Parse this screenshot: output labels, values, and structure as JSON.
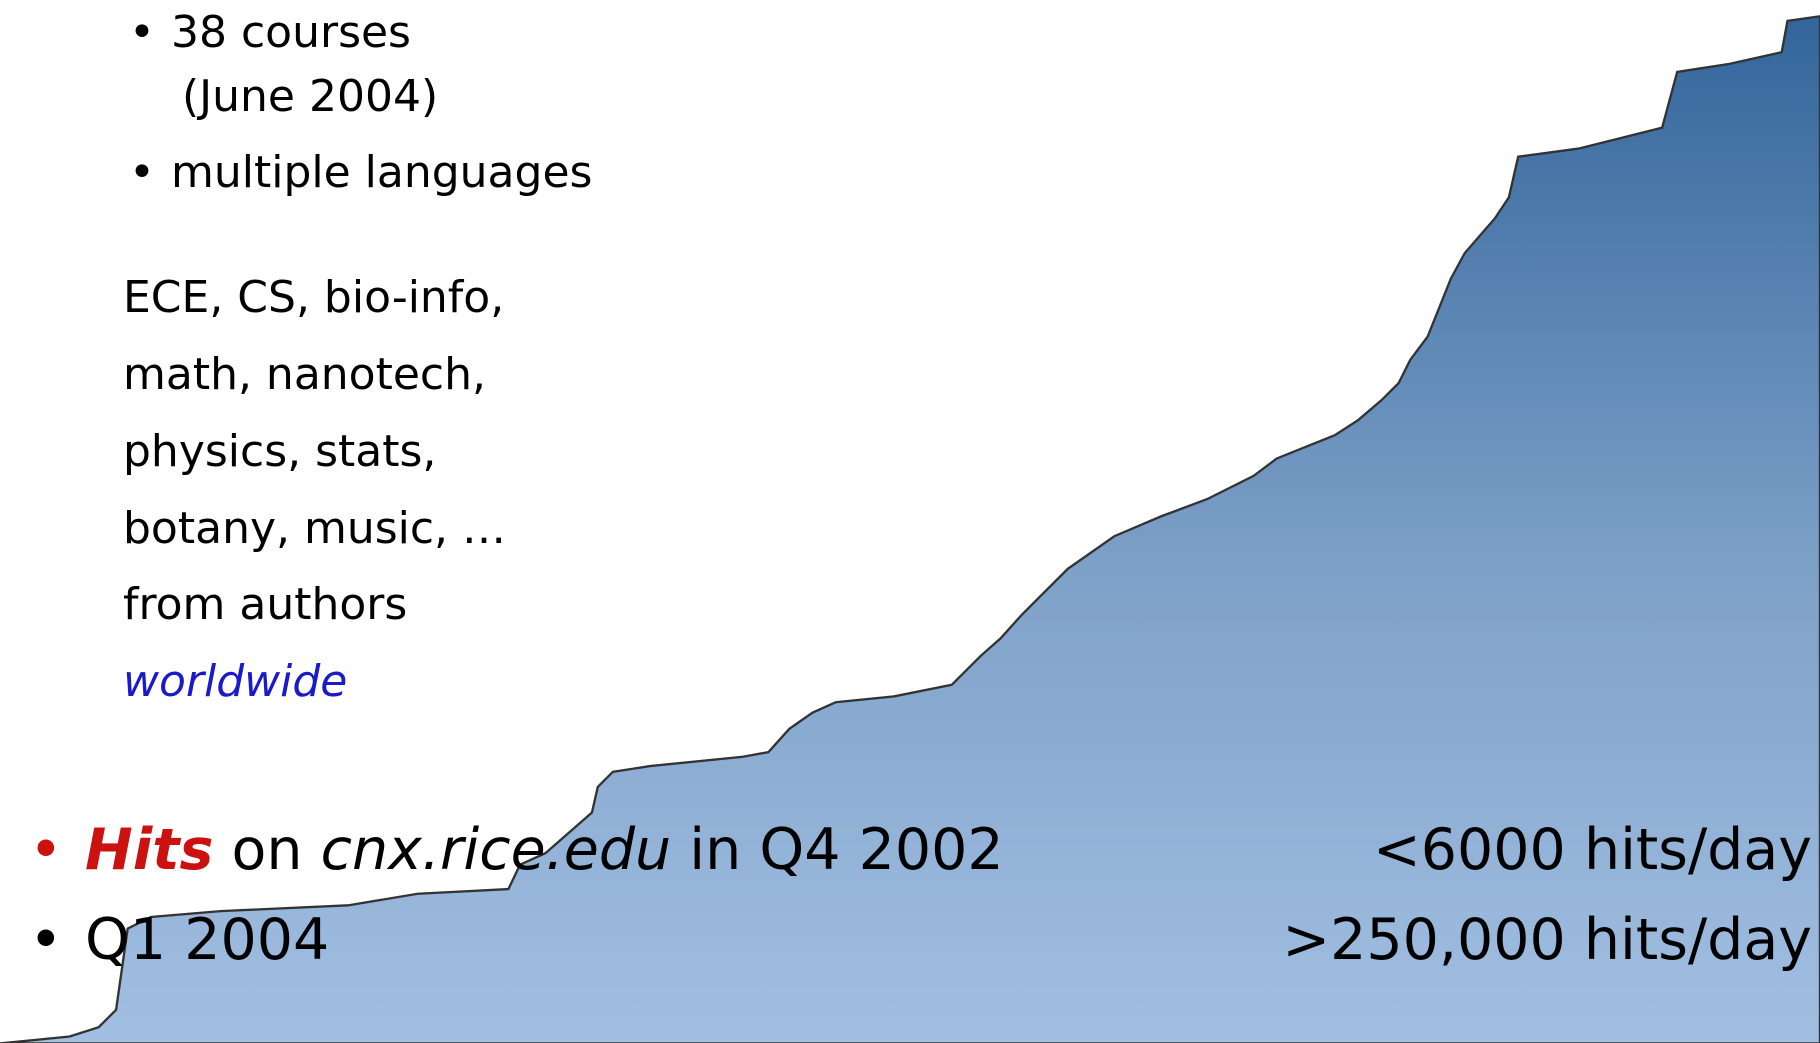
{
  "list": [
    {
      "lines": [
        "38 courses",
        "(June 2004)"
      ]
    },
    {
      "lines": [
        "multiple languages"
      ]
    }
  ],
  "paragraph": {
    "lines": [
      "ECE, CS, bio-info,",
      "math, nanotech,",
      "physics, stats,",
      "botany, music, …",
      "from authors",
      "worldwide"
    ]
  },
  "stats": [
    {
      "label": [
        "Hits",
        " on ",
        "cnx.rice.edu",
        " in Q4 2002"
      ],
      "value": "<6000 hits/day"
    },
    {
      "label": [
        "Q1 2004"
      ],
      "value": ">250,000 hits/day"
    }
  ]
}
